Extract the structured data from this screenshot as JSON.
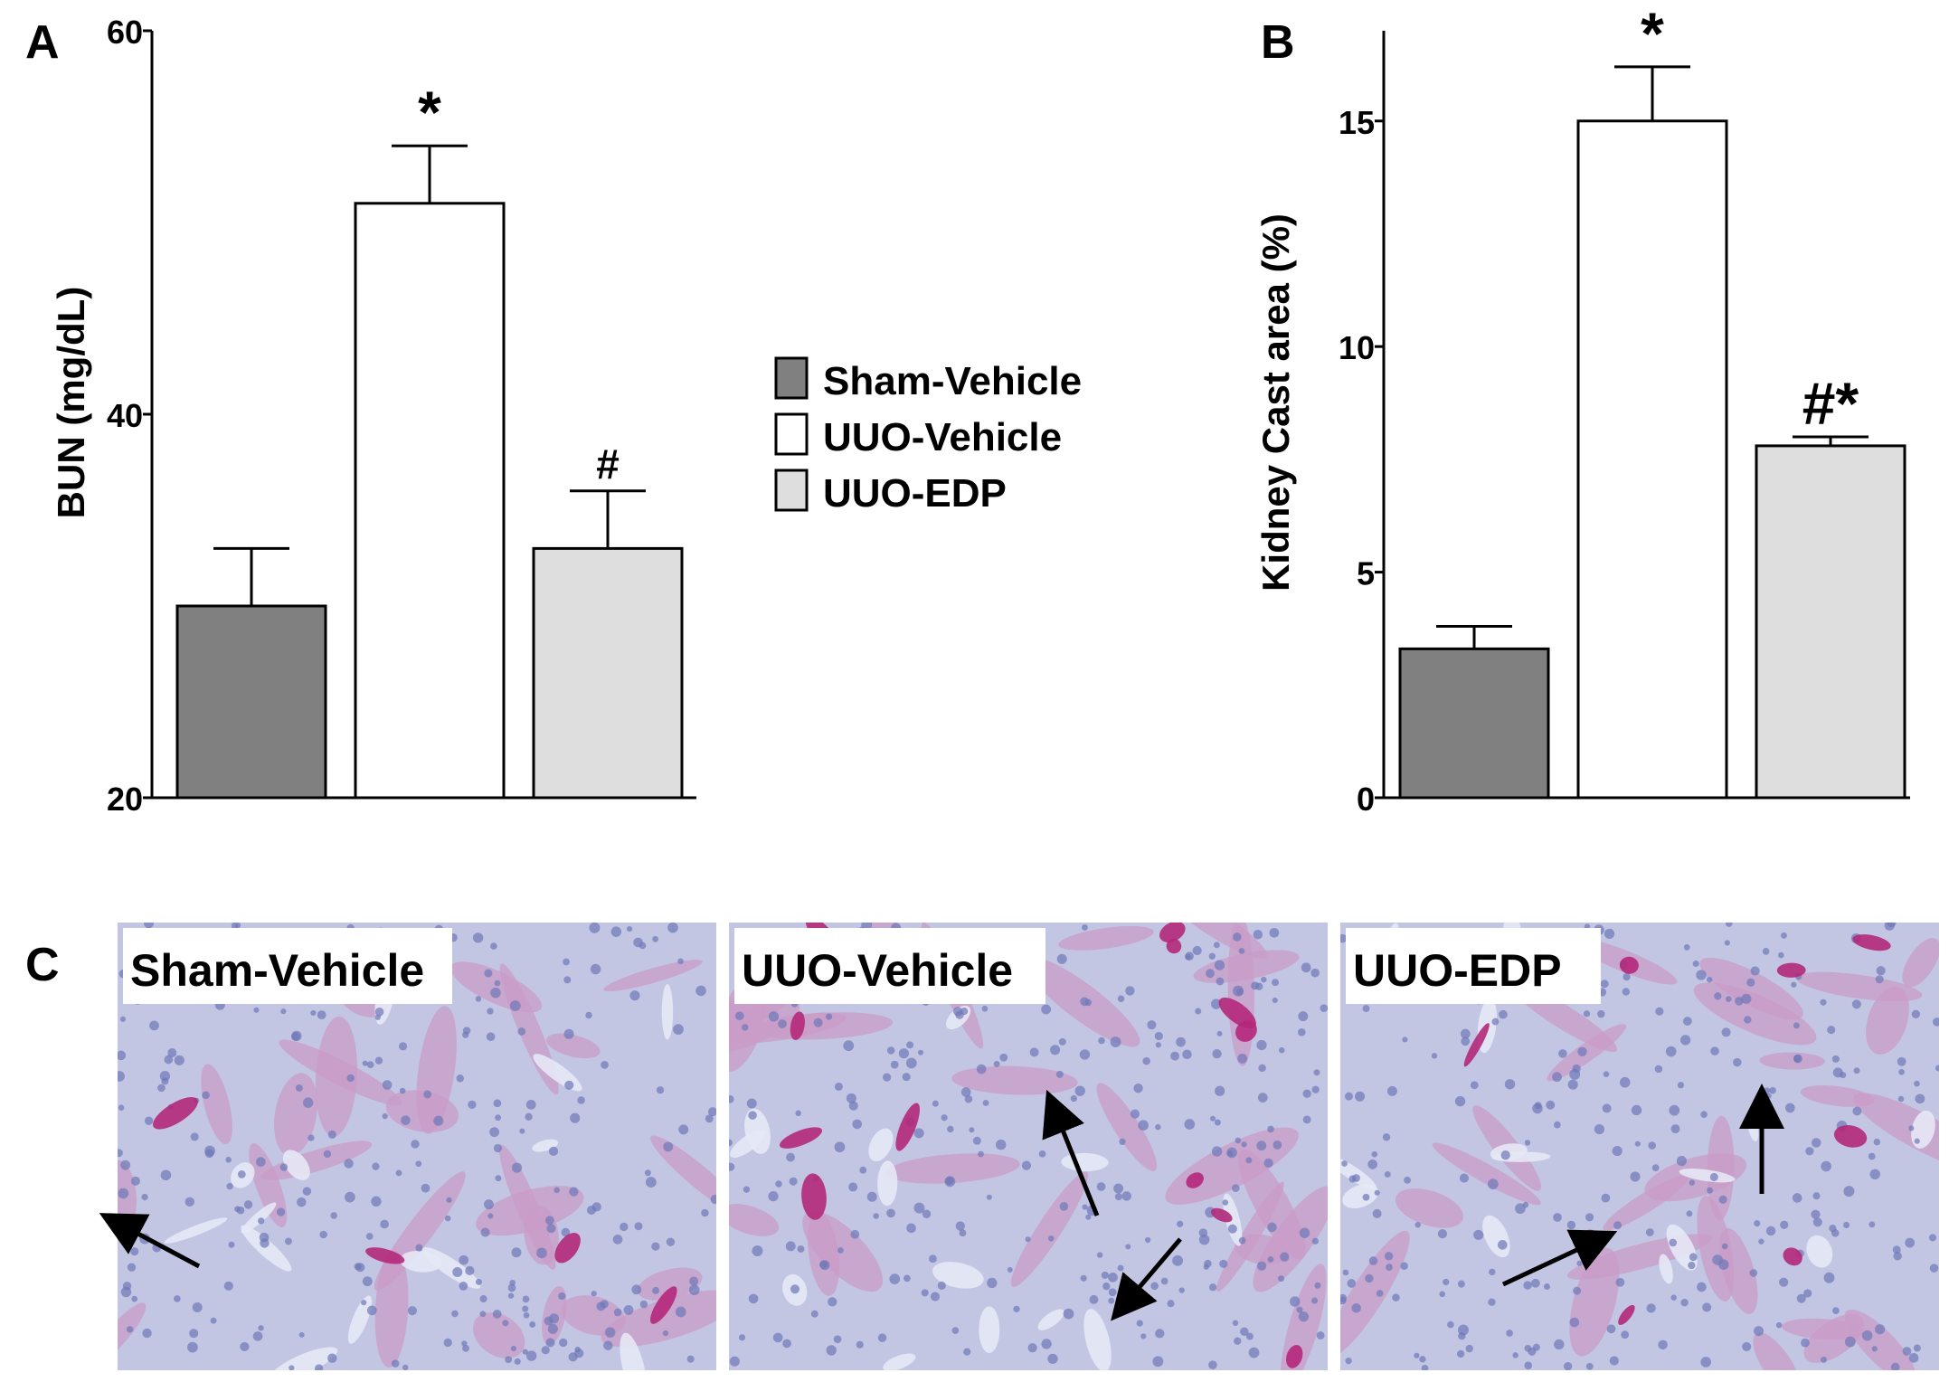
{
  "panel_labels": {
    "a": "A",
    "b": "B",
    "c": "C"
  },
  "legend": [
    {
      "label": "Sham-Vehicle",
      "color": "#808080"
    },
    {
      "label": "UUO-Vehicle",
      "color": "#ffffff"
    },
    {
      "label": "UUO-EDP",
      "color": "#dedede"
    }
  ],
  "chart_data": [
    {
      "panel": "A",
      "type": "bar",
      "categories": [
        "Sham-Vehicle",
        "UUO-Vehicle",
        "UUO-EDP"
      ],
      "values": [
        30,
        51,
        33
      ],
      "errors": [
        3,
        3,
        3
      ],
      "annotations": [
        "",
        "*",
        "#"
      ],
      "colors": [
        "#808080",
        "#ffffff",
        "#dedede"
      ],
      "ylabel": "BUN (mg/dL)",
      "ylim": [
        20,
        60
      ],
      "yticks": [
        20,
        40,
        60
      ],
      "grid": false
    },
    {
      "panel": "B",
      "type": "bar",
      "categories": [
        "Sham-Vehicle",
        "UUO-Vehicle",
        "UUO-EDP"
      ],
      "values": [
        3.3,
        15,
        7.8
      ],
      "errors": [
        0.5,
        1.2,
        0.2
      ],
      "annotations": [
        "",
        "*",
        "#*"
      ],
      "colors": [
        "#808080",
        "#ffffff",
        "#dedede"
      ],
      "ylabel": "Kidney Cast area (%)",
      "ylim": [
        0,
        17
      ],
      "yticks": [
        0,
        5,
        10,
        15
      ],
      "grid": false
    }
  ],
  "micrographs": [
    {
      "label": "Sham-Vehicle",
      "arrows": 1
    },
    {
      "label": "UUO-Vehicle",
      "arrows": 2
    },
    {
      "label": "UUO-EDP",
      "arrows": 2
    }
  ],
  "colors": {
    "tissue_base": "#c3c6e3",
    "tissue_pink": "#c99cc8",
    "cast_magenta": "#b4287a",
    "nuclei": "#6e77b8"
  }
}
